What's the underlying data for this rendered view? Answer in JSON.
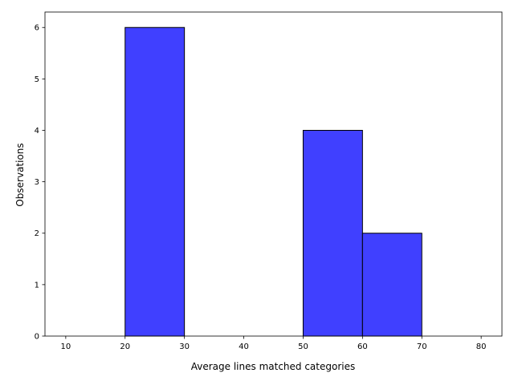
{
  "chart_data": {
    "type": "bar",
    "subtype": "histogram",
    "bin_edges": [
      10,
      20,
      30,
      40,
      50,
      60,
      70,
      80
    ],
    "counts": [
      0,
      6,
      0,
      0,
      4,
      2,
      0
    ],
    "xlabel": "Average lines matched categories",
    "ylabel": "Observations",
    "xlim": [
      6.5,
      83.5
    ],
    "ylim": [
      0,
      6.3
    ],
    "xticks": [
      10,
      20,
      30,
      40,
      50,
      60,
      70,
      80
    ],
    "yticks": [
      0,
      1,
      2,
      3,
      4,
      5,
      6
    ],
    "grid": false,
    "bar_color": "#4040ff",
    "edge_color": "#000000"
  }
}
